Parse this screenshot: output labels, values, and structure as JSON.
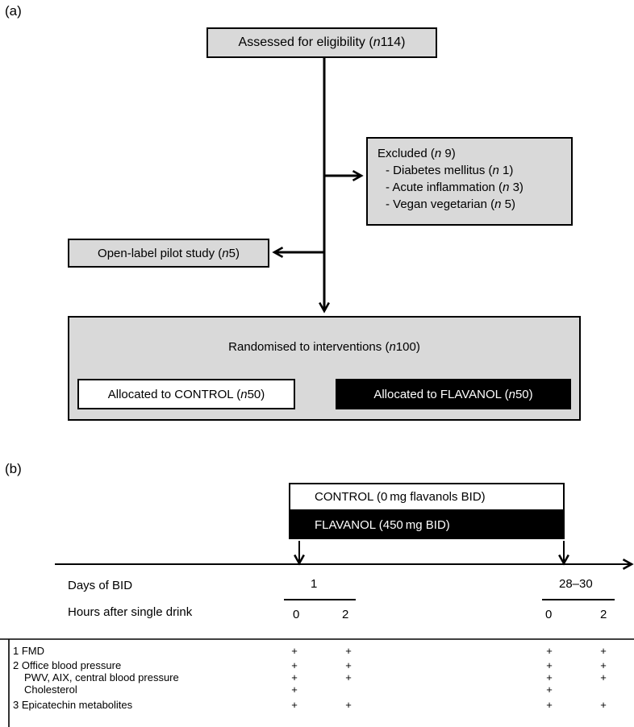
{
  "panel_a": {
    "label": "(a)",
    "assessed": {
      "prefix": "Assessed for eligibility (",
      "n": "n",
      "value": " 114)"
    },
    "excluded": {
      "title": {
        "prefix": "Excluded (",
        "n": "n",
        "value": " 9)"
      },
      "items": [
        {
          "prefix": "- Diabetes mellitus (",
          "n": "n",
          "value": " 1)"
        },
        {
          "prefix": "- Acute inflammation (",
          "n": "n",
          "value": " 3)"
        },
        {
          "prefix": "- Vegan vegetarian (",
          "n": "n",
          "value": " 5)"
        }
      ]
    },
    "pilot": {
      "prefix": "Open-label pilot study (",
      "n": "n",
      "value": " 5)"
    },
    "randomised": {
      "prefix": "Randomised to interventions (",
      "n": "n",
      "value": " 100)"
    },
    "control": {
      "prefix": "Allocated to CONTROL (",
      "n": "n",
      "value": " 50)"
    },
    "flavanol": {
      "prefix": "Allocated to FLAVANOL (",
      "n": "n",
      "value": " 50)"
    }
  },
  "panel_b": {
    "label": "(b)",
    "control_box": "CONTROL (0 mg flavanols BID)",
    "flavanol_box": "FLAVANOL (450 mg BID)",
    "days_label": "Days of BID",
    "hours_label": "Hours after single drink",
    "day_first": "1",
    "day_last": "28–30",
    "hours": [
      "0",
      "2",
      "0",
      "2"
    ],
    "rows": [
      {
        "label": "1 FMD",
        "marks": [
          "+",
          "+",
          "+",
          "+"
        ]
      },
      {
        "label": "2 Office blood pressure",
        "marks": [
          "+",
          "+",
          "+",
          "+"
        ]
      },
      {
        "label": "PWV, AIX, central blood pressure",
        "marks": [
          "+",
          "+",
          "+",
          "+"
        ]
      },
      {
        "label": "Cholesterol",
        "marks": [
          "+",
          "",
          "+",
          ""
        ]
      },
      {
        "label": "3 Epicatechin metabolites",
        "marks": [
          "+",
          "+",
          "+",
          "+"
        ]
      }
    ]
  }
}
